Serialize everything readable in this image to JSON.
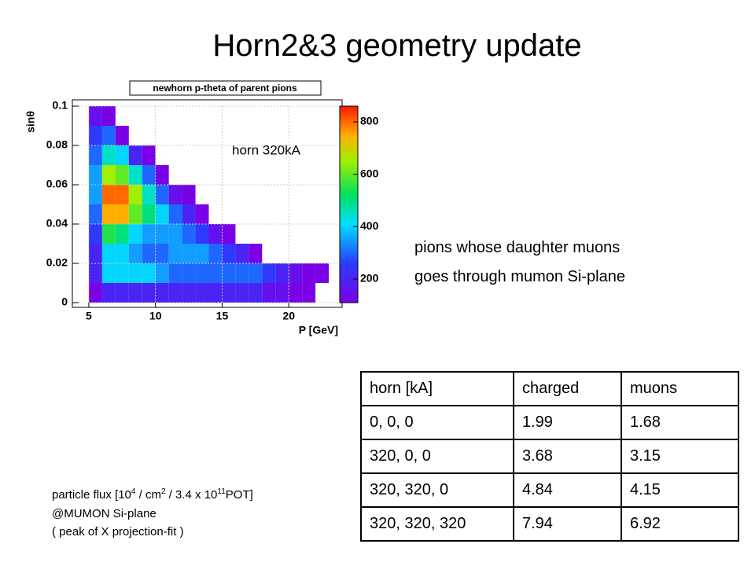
{
  "title": "Horn2&3 geometry update",
  "chart_data": {
    "type": "heatmap",
    "title": "newhorn p-theta of parent pions",
    "xlabel": "P [GeV]",
    "ylabel": "sinθ",
    "annotation": "horn 320kA",
    "xbins": [
      5,
      6,
      7,
      8,
      9,
      10,
      11,
      12,
      13,
      14,
      15,
      16,
      17,
      18,
      19,
      20,
      21,
      22,
      23
    ],
    "ybins": [
      0,
      0.01,
      0.02,
      0.03,
      0.04,
      0.05,
      0.06,
      0.07,
      0.08,
      0.09,
      0.1
    ],
    "values": [
      [
        100,
        200,
        200,
        200,
        200,
        200,
        200,
        200,
        200,
        200,
        200,
        200,
        200,
        150,
        150,
        100,
        50,
        0
      ],
      [
        200,
        400,
        400,
        400,
        400,
        350,
        300,
        300,
        300,
        300,
        300,
        300,
        300,
        250,
        200,
        150,
        100,
        50
      ],
      [
        200,
        400,
        400,
        350,
        300,
        300,
        350,
        350,
        350,
        300,
        250,
        200,
        100,
        0,
        0,
        0,
        0,
        0
      ],
      [
        250,
        550,
        500,
        400,
        350,
        350,
        350,
        300,
        250,
        150,
        50,
        0,
        0,
        0,
        0,
        0,
        0,
        0
      ],
      [
        300,
        750,
        750,
        600,
        500,
        400,
        300,
        200,
        100,
        0,
        0,
        0,
        0,
        0,
        0,
        0,
        0,
        0
      ],
      [
        350,
        800,
        800,
        650,
        450,
        300,
        150,
        50,
        0,
        0,
        0,
        0,
        0,
        0,
        0,
        0,
        0,
        0
      ],
      [
        350,
        650,
        600,
        450,
        300,
        100,
        0,
        0,
        0,
        0,
        0,
        0,
        0,
        0,
        0,
        0,
        0,
        0
      ],
      [
        300,
        450,
        400,
        200,
        50,
        0,
        0,
        0,
        0,
        0,
        0,
        0,
        0,
        0,
        0,
        0,
        0,
        0
      ],
      [
        250,
        300,
        100,
        0,
        0,
        0,
        0,
        0,
        0,
        0,
        0,
        0,
        0,
        0,
        0,
        0,
        0,
        0
      ],
      [
        150,
        50,
        0,
        0,
        0,
        0,
        0,
        0,
        0,
        0,
        0,
        0,
        0,
        0,
        0,
        0,
        0,
        0
      ]
    ],
    "xlim": [
      4,
      24
    ],
    "ylim": [
      0,
      0.1
    ],
    "zlim": [
      110,
      860
    ],
    "xticks": [
      5,
      10,
      15,
      20
    ],
    "yticks": [
      0,
      0.02,
      0.04,
      0.06,
      0.08,
      0.1
    ],
    "zticks": [
      200,
      400,
      600,
      800
    ],
    "grid": true
  },
  "description": [
    "pions whose daughter muons",
    "goes through mumon Si-plane"
  ],
  "table": {
    "header": [
      "horn [kA]",
      "charged",
      "muons"
    ],
    "rows": [
      [
        "0, 0, 0",
        "1.99",
        "1.68"
      ],
      [
        "320, 0, 0",
        "3.68",
        "3.15"
      ],
      [
        "320, 320, 0",
        "4.84",
        "4.15"
      ],
      [
        "320, 320, 320",
        "7.94",
        "6.92"
      ]
    ]
  },
  "note": {
    "line1": [
      "particle flux [10",
      "4",
      " / cm",
      "2",
      " / 3.4 x 10",
      "11",
      "POT]"
    ],
    "line2": "@MUMON Si-plane",
    "line3": "( peak of X projection-fit )"
  }
}
